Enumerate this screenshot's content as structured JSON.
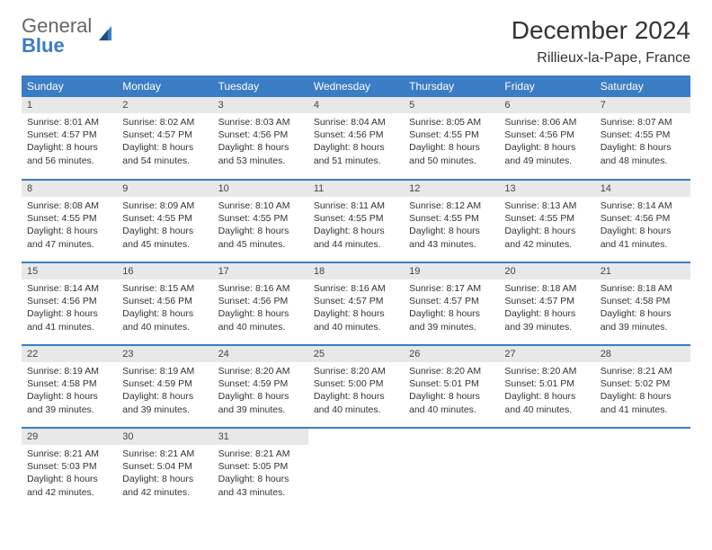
{
  "logo": {
    "part1": "General",
    "part2": "Blue"
  },
  "title": "December 2024",
  "location": "Rillieux-la-Pape, France",
  "colors": {
    "header_bg": "#3b7dc4",
    "header_text": "#ffffff",
    "daynum_bg": "#e8e8e8",
    "body_text": "#333333",
    "row_sep": "#3b7dc4"
  },
  "fonts": {
    "title_size": 28,
    "location_size": 16,
    "th_size": 12,
    "cell_size": 10.5
  },
  "daysOfWeek": [
    "Sunday",
    "Monday",
    "Tuesday",
    "Wednesday",
    "Thursday",
    "Friday",
    "Saturday"
  ],
  "weeks": [
    [
      {
        "n": "1",
        "sr": "Sunrise: 8:01 AM",
        "ss": "Sunset: 4:57 PM",
        "d1": "Daylight: 8 hours",
        "d2": "and 56 minutes."
      },
      {
        "n": "2",
        "sr": "Sunrise: 8:02 AM",
        "ss": "Sunset: 4:57 PM",
        "d1": "Daylight: 8 hours",
        "d2": "and 54 minutes."
      },
      {
        "n": "3",
        "sr": "Sunrise: 8:03 AM",
        "ss": "Sunset: 4:56 PM",
        "d1": "Daylight: 8 hours",
        "d2": "and 53 minutes."
      },
      {
        "n": "4",
        "sr": "Sunrise: 8:04 AM",
        "ss": "Sunset: 4:56 PM",
        "d1": "Daylight: 8 hours",
        "d2": "and 51 minutes."
      },
      {
        "n": "5",
        "sr": "Sunrise: 8:05 AM",
        "ss": "Sunset: 4:55 PM",
        "d1": "Daylight: 8 hours",
        "d2": "and 50 minutes."
      },
      {
        "n": "6",
        "sr": "Sunrise: 8:06 AM",
        "ss": "Sunset: 4:56 PM",
        "d1": "Daylight: 8 hours",
        "d2": "and 49 minutes."
      },
      {
        "n": "7",
        "sr": "Sunrise: 8:07 AM",
        "ss": "Sunset: 4:55 PM",
        "d1": "Daylight: 8 hours",
        "d2": "and 48 minutes."
      }
    ],
    [
      {
        "n": "8",
        "sr": "Sunrise: 8:08 AM",
        "ss": "Sunset: 4:55 PM",
        "d1": "Daylight: 8 hours",
        "d2": "and 47 minutes."
      },
      {
        "n": "9",
        "sr": "Sunrise: 8:09 AM",
        "ss": "Sunset: 4:55 PM",
        "d1": "Daylight: 8 hours",
        "d2": "and 45 minutes."
      },
      {
        "n": "10",
        "sr": "Sunrise: 8:10 AM",
        "ss": "Sunset: 4:55 PM",
        "d1": "Daylight: 8 hours",
        "d2": "and 45 minutes."
      },
      {
        "n": "11",
        "sr": "Sunrise: 8:11 AM",
        "ss": "Sunset: 4:55 PM",
        "d1": "Daylight: 8 hours",
        "d2": "and 44 minutes."
      },
      {
        "n": "12",
        "sr": "Sunrise: 8:12 AM",
        "ss": "Sunset: 4:55 PM",
        "d1": "Daylight: 8 hours",
        "d2": "and 43 minutes."
      },
      {
        "n": "13",
        "sr": "Sunrise: 8:13 AM",
        "ss": "Sunset: 4:55 PM",
        "d1": "Daylight: 8 hours",
        "d2": "and 42 minutes."
      },
      {
        "n": "14",
        "sr": "Sunrise: 8:14 AM",
        "ss": "Sunset: 4:56 PM",
        "d1": "Daylight: 8 hours",
        "d2": "and 41 minutes."
      }
    ],
    [
      {
        "n": "15",
        "sr": "Sunrise: 8:14 AM",
        "ss": "Sunset: 4:56 PM",
        "d1": "Daylight: 8 hours",
        "d2": "and 41 minutes."
      },
      {
        "n": "16",
        "sr": "Sunrise: 8:15 AM",
        "ss": "Sunset: 4:56 PM",
        "d1": "Daylight: 8 hours",
        "d2": "and 40 minutes."
      },
      {
        "n": "17",
        "sr": "Sunrise: 8:16 AM",
        "ss": "Sunset: 4:56 PM",
        "d1": "Daylight: 8 hours",
        "d2": "and 40 minutes."
      },
      {
        "n": "18",
        "sr": "Sunrise: 8:16 AM",
        "ss": "Sunset: 4:57 PM",
        "d1": "Daylight: 8 hours",
        "d2": "and 40 minutes."
      },
      {
        "n": "19",
        "sr": "Sunrise: 8:17 AM",
        "ss": "Sunset: 4:57 PM",
        "d1": "Daylight: 8 hours",
        "d2": "and 39 minutes."
      },
      {
        "n": "20",
        "sr": "Sunrise: 8:18 AM",
        "ss": "Sunset: 4:57 PM",
        "d1": "Daylight: 8 hours",
        "d2": "and 39 minutes."
      },
      {
        "n": "21",
        "sr": "Sunrise: 8:18 AM",
        "ss": "Sunset: 4:58 PM",
        "d1": "Daylight: 8 hours",
        "d2": "and 39 minutes."
      }
    ],
    [
      {
        "n": "22",
        "sr": "Sunrise: 8:19 AM",
        "ss": "Sunset: 4:58 PM",
        "d1": "Daylight: 8 hours",
        "d2": "and 39 minutes."
      },
      {
        "n": "23",
        "sr": "Sunrise: 8:19 AM",
        "ss": "Sunset: 4:59 PM",
        "d1": "Daylight: 8 hours",
        "d2": "and 39 minutes."
      },
      {
        "n": "24",
        "sr": "Sunrise: 8:20 AM",
        "ss": "Sunset: 4:59 PM",
        "d1": "Daylight: 8 hours",
        "d2": "and 39 minutes."
      },
      {
        "n": "25",
        "sr": "Sunrise: 8:20 AM",
        "ss": "Sunset: 5:00 PM",
        "d1": "Daylight: 8 hours",
        "d2": "and 40 minutes."
      },
      {
        "n": "26",
        "sr": "Sunrise: 8:20 AM",
        "ss": "Sunset: 5:01 PM",
        "d1": "Daylight: 8 hours",
        "d2": "and 40 minutes."
      },
      {
        "n": "27",
        "sr": "Sunrise: 8:20 AM",
        "ss": "Sunset: 5:01 PM",
        "d1": "Daylight: 8 hours",
        "d2": "and 40 minutes."
      },
      {
        "n": "28",
        "sr": "Sunrise: 8:21 AM",
        "ss": "Sunset: 5:02 PM",
        "d1": "Daylight: 8 hours",
        "d2": "and 41 minutes."
      }
    ],
    [
      {
        "n": "29",
        "sr": "Sunrise: 8:21 AM",
        "ss": "Sunset: 5:03 PM",
        "d1": "Daylight: 8 hours",
        "d2": "and 42 minutes."
      },
      {
        "n": "30",
        "sr": "Sunrise: 8:21 AM",
        "ss": "Sunset: 5:04 PM",
        "d1": "Daylight: 8 hours",
        "d2": "and 42 minutes."
      },
      {
        "n": "31",
        "sr": "Sunrise: 8:21 AM",
        "ss": "Sunset: 5:05 PM",
        "d1": "Daylight: 8 hours",
        "d2": "and 43 minutes."
      },
      null,
      null,
      null,
      null
    ]
  ]
}
